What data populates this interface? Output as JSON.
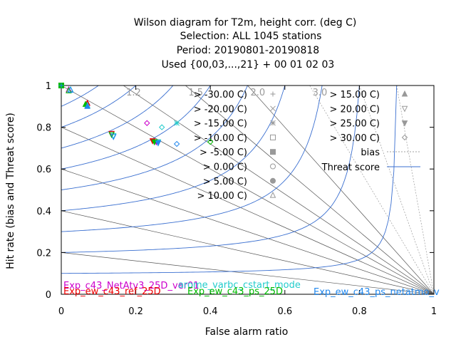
{
  "chart_data": {
    "type": "scatter",
    "title": "Wilson diagram  for T2m, height corr. (deg C)",
    "subtitle_lines": [
      "Selection: ALL    1045 stations",
      "Period: 20190801-20190818",
      "Used {00,03,...,21} + 00 01 02 03"
    ],
    "xlabel": "False alarm ratio",
    "ylabel": "Hit rate (bias and Threat score)",
    "xlim": [
      0,
      1
    ],
    "ylim": [
      0,
      1
    ],
    "x_ticks": [
      "0",
      "0.2",
      "0.4",
      "0.6",
      "0.8",
      "1"
    ],
    "y_ticks": [
      "0",
      "0.2",
      "0.4",
      "0.6",
      "0.8",
      "1"
    ],
    "x_tick_values": [
      0,
      0.2,
      0.4,
      0.6,
      0.8,
      1
    ],
    "y_tick_values": [
      0,
      0.2,
      0.4,
      0.6,
      0.8,
      1
    ],
    "bias_lines": [
      0.2,
      0.4,
      0.6,
      0.8,
      1.0,
      1.2,
      1.5,
      2.0,
      3.0,
      5.0,
      10.0
    ],
    "bias_labels": [
      {
        "value": 1.2,
        "text": "1.2"
      },
      {
        "value": 1.5,
        "text": "1.5"
      },
      {
        "value": 2.0,
        "text": "2.0"
      },
      {
        "value": 3.0,
        "text": "3.0"
      }
    ],
    "threat_scores": [
      0.1,
      0.2,
      0.3,
      0.4,
      0.5,
      0.6,
      0.7,
      0.8,
      0.9
    ],
    "threshold_legend": [
      {
        "label": "> -30.00 C)",
        "symbol": "plus"
      },
      {
        "label": "> -20.00 C)",
        "symbol": "cross"
      },
      {
        "label": "> -15.00 C)",
        "symbol": "star"
      },
      {
        "label": "> -10.00 C)",
        "symbol": "square-open"
      },
      {
        "label": "> -5.00 C)",
        "symbol": "square-filled"
      },
      {
        "label": "> 0.00 C)",
        "symbol": "circle-open"
      },
      {
        "label": "> 5.00 C)",
        "symbol": "circle-filled"
      },
      {
        "label": "> 10.00 C)",
        "symbol": "triangle-open"
      },
      {
        "label": "> 15.00 C)",
        "symbol": "triangle-filled"
      },
      {
        "label": "> 20.00 C)",
        "symbol": "tri-down-open"
      },
      {
        "label": "> 25.00 C)",
        "symbol": "tri-down-filled"
      },
      {
        "label": "> 30.00 C)",
        "symbol": "diamond-open"
      }
    ],
    "line_legend": [
      {
        "label": "bias",
        "style": "dotted",
        "color": "#a0a0a0"
      },
      {
        "label": "Threat score",
        "style": "solid",
        "color": "#3a6fd0"
      }
    ],
    "experiments": [
      {
        "name": "Exp_c43_NetAtv3_25D_ver01",
        "color": "#cc00cc"
      },
      {
        "name": "Exp_ew_c43_ref_25D",
        "color": "#ee0000"
      },
      {
        "name": "arome_varbc_cstart_mode",
        "color": "#22cccc"
      },
      {
        "name": "Exp_ew_c43_ps_25D",
        "color": "#00bb00"
      },
      {
        "name": "Exp_ew_c43_ps_netatmo_v",
        "color": "#2288ee"
      }
    ],
    "series": [
      {
        "name": "Exp_c43_NetAtv3_25D_ver01",
        "color": "#cc00cc",
        "points": [
          [
            0.0,
            1.0,
            "plus"
          ],
          [
            0.02,
            0.98,
            "triangle-open"
          ],
          [
            0.07,
            0.915,
            "triangle-filled"
          ],
          [
            0.135,
            0.77,
            "tri-down-open"
          ],
          [
            0.23,
            0.82,
            "diamond-open"
          ],
          [
            0.255,
            0.73,
            "tri-down-filled"
          ]
        ]
      },
      {
        "name": "Exp_ew_c43_ref_25D",
        "color": "#ee0000",
        "points": [
          [
            0.0,
            1.0,
            "square-filled"
          ],
          [
            0.07,
            0.915,
            "triangle-filled"
          ],
          [
            0.135,
            0.77,
            "tri-down-open"
          ],
          [
            0.245,
            0.735,
            "tri-down-filled"
          ]
        ]
      },
      {
        "name": "arome_varbc_cstart_mode",
        "color": "#22cccc",
        "points": [
          [
            0.0,
            1.0,
            "circle-filled"
          ],
          [
            0.025,
            0.98,
            "triangle-open"
          ],
          [
            0.07,
            0.905,
            "triangle-filled"
          ],
          [
            0.14,
            0.76,
            "tri-down-open"
          ],
          [
            0.27,
            0.8,
            "diamond-open"
          ],
          [
            0.31,
            0.82,
            "star"
          ],
          [
            0.26,
            0.73,
            "tri-down-filled"
          ]
        ]
      },
      {
        "name": "Exp_ew_c43_ps_25D",
        "color": "#00bb00",
        "points": [
          [
            0.0,
            1.0,
            "square-filled"
          ],
          [
            0.02,
            0.975,
            "triangle-open"
          ],
          [
            0.065,
            0.91,
            "triangle-filled"
          ],
          [
            0.135,
            0.765,
            "tri-down-open"
          ],
          [
            0.25,
            0.73,
            "tri-down-filled"
          ],
          [
            0.4,
            0.73,
            "diamond-open"
          ]
        ]
      },
      {
        "name": "Exp_ew_c43_ps_netatmo_v",
        "color": "#2288ee",
        "points": [
          [
            0.0,
            1.0,
            "plus"
          ],
          [
            0.025,
            0.978,
            "triangle-open"
          ],
          [
            0.07,
            0.9,
            "triangle-filled"
          ],
          [
            0.14,
            0.755,
            "tri-down-open"
          ],
          [
            0.26,
            0.725,
            "tri-down-filled"
          ],
          [
            0.31,
            0.72,
            "diamond-open"
          ]
        ]
      }
    ]
  }
}
